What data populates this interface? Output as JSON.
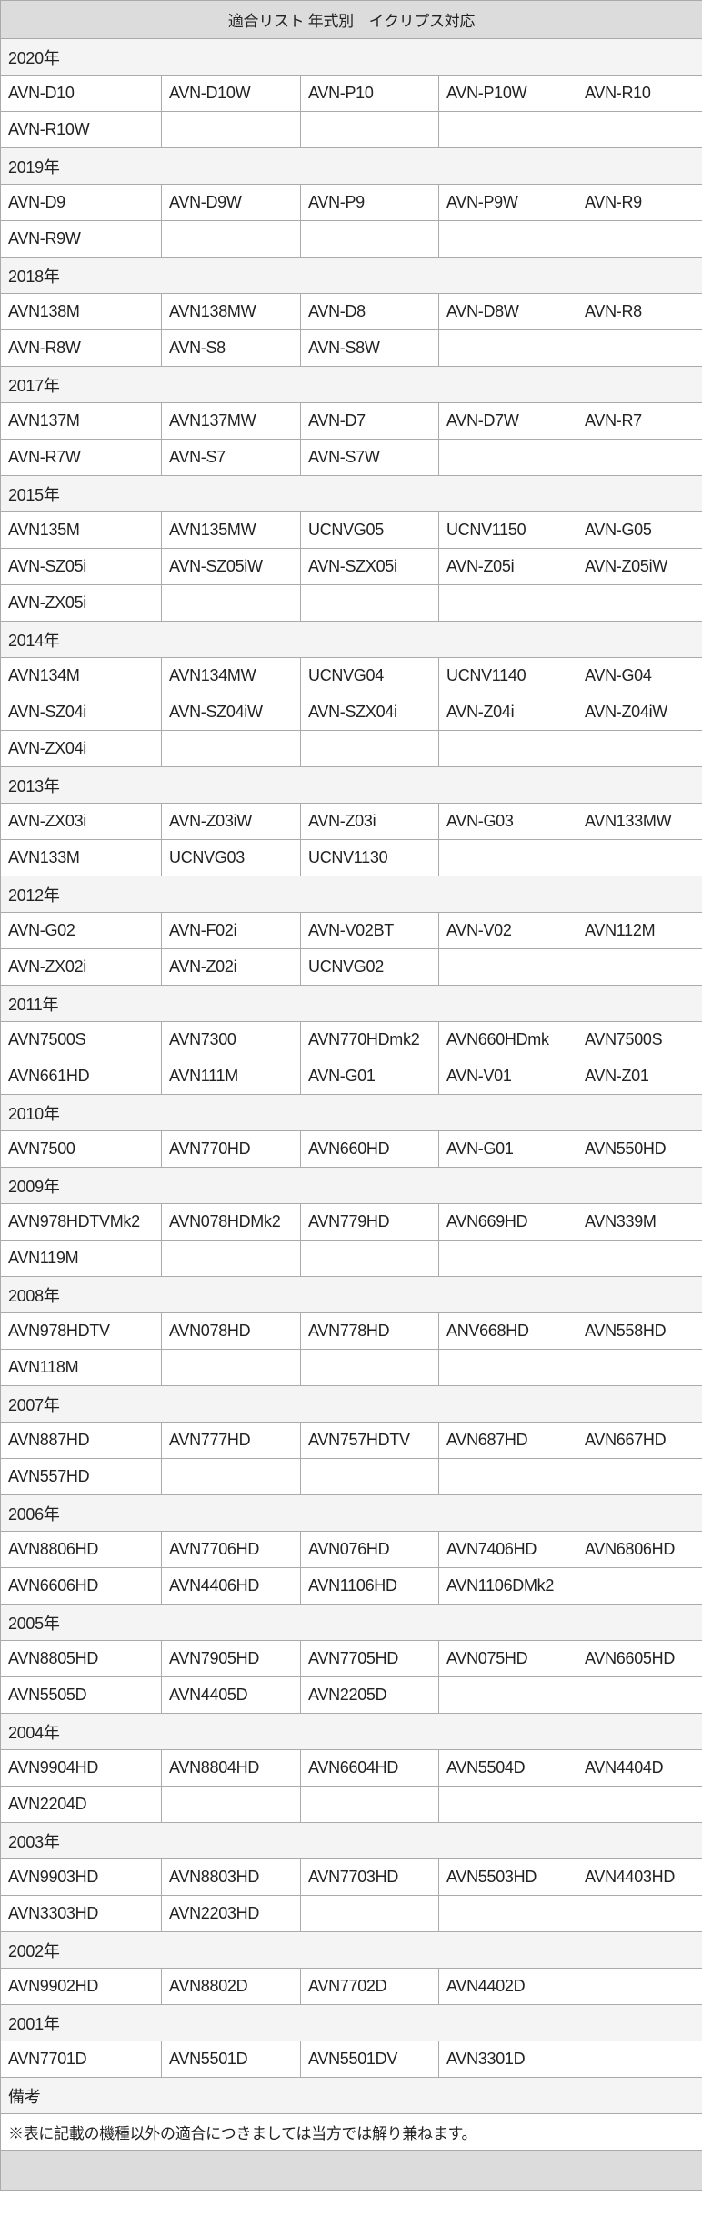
{
  "title": "適合リスト 年式別　イクリプス対応",
  "years": [
    {
      "label": "2020年",
      "models": [
        "AVN-D10",
        "AVN-D10W",
        "AVN-P10",
        "AVN-P10W",
        "AVN-R10",
        "AVN-R10W"
      ]
    },
    {
      "label": "2019年",
      "models": [
        "AVN-D9",
        "AVN-D9W",
        "AVN-P9",
        "AVN-P9W",
        "AVN-R9",
        "AVN-R9W"
      ]
    },
    {
      "label": "2018年",
      "models": [
        "AVN138M",
        "AVN138MW",
        "AVN-D8",
        "AVN-D8W",
        "AVN-R8",
        "AVN-R8W",
        "AVN-S8",
        "AVN-S8W"
      ]
    },
    {
      "label": "2017年",
      "models": [
        "AVN137M",
        "AVN137MW",
        "AVN-D7",
        "AVN-D7W",
        "AVN-R7",
        "AVN-R7W",
        "AVN-S7",
        "AVN-S7W"
      ]
    },
    {
      "label": "2015年",
      "models": [
        "AVN135M",
        "AVN135MW",
        "UCNVG05",
        "UCNV1150",
        "AVN-G05",
        "AVN-SZ05i",
        "AVN-SZ05iW",
        "AVN-SZX05i",
        "AVN-Z05i",
        "AVN-Z05iW",
        "AVN-ZX05i"
      ]
    },
    {
      "label": "2014年",
      "models": [
        "AVN134M",
        "AVN134MW",
        "UCNVG04",
        "UCNV1140",
        "AVN-G04",
        "AVN-SZ04i",
        "AVN-SZ04iW",
        "AVN-SZX04i",
        "AVN-Z04i",
        "AVN-Z04iW",
        "AVN-ZX04i"
      ]
    },
    {
      "label": "2013年",
      "models": [
        "AVN-ZX03i",
        "AVN-Z03iW",
        "AVN-Z03i",
        "AVN-G03",
        "AVN133MW",
        "AVN133M",
        "UCNVG03",
        "UCNV1130"
      ]
    },
    {
      "label": "2012年",
      "models": [
        "AVN-G02",
        "AVN-F02i",
        "AVN-V02BT",
        "AVN-V02",
        "AVN112M",
        "AVN-ZX02i",
        "AVN-Z02i",
        "UCNVG02"
      ]
    },
    {
      "label": "2011年",
      "models": [
        "AVN7500S",
        "AVN7300",
        "AVN770HDmk2",
        "AVN660HDmk",
        "AVN7500S",
        "AVN661HD",
        "AVN111M",
        "AVN-G01",
        "AVN-V01",
        "AVN-Z01"
      ]
    },
    {
      "label": "2010年",
      "models": [
        "AVN7500",
        "AVN770HD",
        "AVN660HD",
        "AVN-G01",
        "AVN550HD"
      ]
    },
    {
      "label": "2009年",
      "models": [
        "AVN978HDTVMk2",
        "AVN078HDMk2",
        "AVN779HD",
        "AVN669HD",
        "AVN339M",
        "AVN119M"
      ]
    },
    {
      "label": "2008年",
      "models": [
        "AVN978HDTV",
        "AVN078HD",
        "AVN778HD",
        "ANV668HD",
        "AVN558HD",
        "AVN118M"
      ]
    },
    {
      "label": "2007年",
      "models": [
        "AVN887HD",
        "AVN777HD",
        "AVN757HDTV",
        "AVN687HD",
        "AVN667HD",
        "AVN557HD"
      ]
    },
    {
      "label": "2006年",
      "models": [
        "AVN8806HD",
        "AVN7706HD",
        "AVN076HD",
        "AVN7406HD",
        "AVN6806HD",
        "AVN6606HD",
        "AVN4406HD",
        "AVN1106HD",
        "AVN1106DMk2"
      ]
    },
    {
      "label": "2005年",
      "models": [
        "AVN8805HD",
        "AVN7905HD",
        "AVN7705HD",
        "AVN075HD",
        "AVN6605HD",
        "AVN5505D",
        "AVN4405D",
        "AVN2205D"
      ]
    },
    {
      "label": "2004年",
      "models": [
        "AVN9904HD",
        "AVN8804HD",
        "AVN6604HD",
        "AVN5504D",
        "AVN4404D",
        "AVN2204D"
      ]
    },
    {
      "label": "2003年",
      "models": [
        "AVN9903HD",
        "AVN8803HD",
        "AVN7703HD",
        "AVN5503HD",
        "AVN4403HD",
        "AVN3303HD",
        "AVN2203HD"
      ]
    },
    {
      "label": "2002年",
      "models": [
        "AVN9902HD",
        "AVN8802D",
        "AVN7702D",
        "AVN4402D"
      ]
    },
    {
      "label": "2001年",
      "models": [
        "AVN7701D",
        "AVN5501D",
        "AVN5501DV",
        "AVN3301D"
      ]
    }
  ],
  "remarks": {
    "label": "備考",
    "text": "※表に記載の機種以外の適合につきましては当方では解り兼ねます。"
  }
}
